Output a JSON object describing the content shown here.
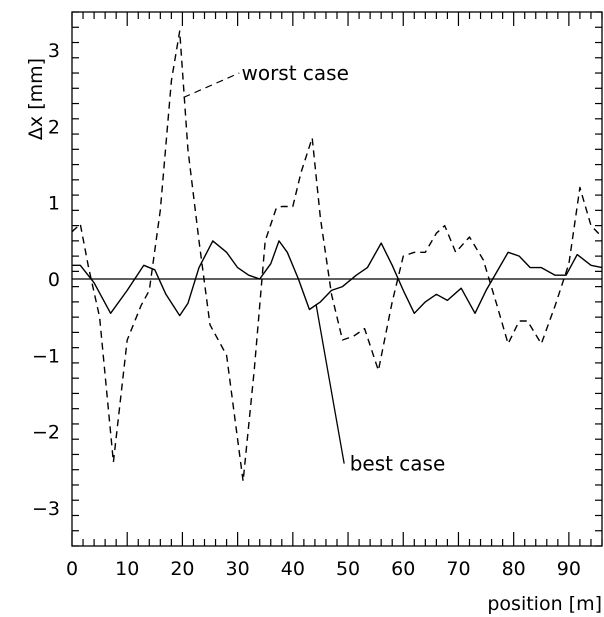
{
  "chart_data": {
    "type": "line",
    "title": "",
    "xlabel": "position [m]",
    "ylabel": "Δx  [mm]",
    "xlim": [
      0,
      96
    ],
    "ylim": [
      -3.5,
      3.5
    ],
    "xticks": [
      0,
      10,
      20,
      30,
      40,
      50,
      60,
      70,
      80,
      90
    ],
    "yticks": [
      -3,
      -2,
      -1,
      0,
      1,
      2,
      3
    ],
    "xtick_labels": [
      "0",
      "10",
      "20",
      "30",
      "40",
      "50",
      "60",
      "70",
      "80",
      "90"
    ],
    "ytick_labels": [
      "−3",
      "−2",
      "−1",
      "0",
      "1",
      "2",
      "3"
    ],
    "grid": false,
    "reference_line": 0,
    "annotations": [
      {
        "text": "worst case",
        "series": "worst case"
      },
      {
        "text": "best case",
        "series": "best case"
      }
    ],
    "series": [
      {
        "name": "worst case",
        "style": "dashed",
        "color": "#000000",
        "x": [
          0,
          1.5,
          3,
          5,
          7.5,
          10,
          12.5,
          14,
          16,
          18,
          19.5,
          21,
          23,
          25,
          28,
          31,
          33,
          35,
          37,
          38,
          40,
          41.5,
          43.5,
          45,
          47,
          49,
          51,
          53,
          55.5,
          58,
          60,
          62,
          64,
          66,
          67.5,
          69.5,
          72,
          74.5,
          77,
          79,
          81,
          82.5,
          85,
          87.5,
          90,
          92,
          94,
          96
        ],
        "y": [
          0.62,
          0.72,
          0.15,
          -0.5,
          -2.4,
          -0.8,
          -0.35,
          -0.15,
          0.9,
          2.6,
          3.25,
          1.7,
          0.5,
          -0.6,
          -1.0,
          -2.65,
          -1.2,
          0.5,
          0.93,
          0.95,
          0.95,
          1.4,
          1.85,
          0.8,
          -0.2,
          -0.8,
          -0.75,
          -0.65,
          -1.2,
          -0.3,
          0.3,
          0.35,
          0.35,
          0.6,
          0.7,
          0.35,
          0.55,
          0.25,
          -0.35,
          -0.85,
          -0.55,
          -0.55,
          -0.85,
          -0.35,
          0.2,
          1.2,
          0.7,
          0.55
        ]
      },
      {
        "name": "best case",
        "style": "solid",
        "color": "#000000",
        "x": [
          0,
          1.5,
          4,
          7,
          10,
          13,
          15,
          17,
          19.5,
          21,
          23,
          25.5,
          28,
          30,
          32,
          34,
          36,
          37.5,
          39,
          41,
          43,
          45,
          47,
          49,
          51.5,
          53.5,
          56,
          58,
          60,
          62,
          64,
          66,
          68,
          70.5,
          73,
          75,
          77,
          79,
          81,
          83,
          85,
          87.5,
          89.5,
          91.5,
          94,
          96
        ],
        "y": [
          0.18,
          0.18,
          -0.05,
          -0.45,
          -0.15,
          0.18,
          0.12,
          -0.2,
          -0.48,
          -0.32,
          0.15,
          0.5,
          0.35,
          0.15,
          0.05,
          0.0,
          0.2,
          0.5,
          0.35,
          0.0,
          -0.4,
          -0.3,
          -0.15,
          -0.1,
          0.05,
          0.15,
          0.47,
          0.18,
          -0.15,
          -0.45,
          -0.3,
          -0.2,
          -0.28,
          -0.12,
          -0.45,
          -0.15,
          0.1,
          0.35,
          0.3,
          0.15,
          0.15,
          0.05,
          0.05,
          0.32,
          0.18,
          0.15
        ]
      }
    ]
  }
}
